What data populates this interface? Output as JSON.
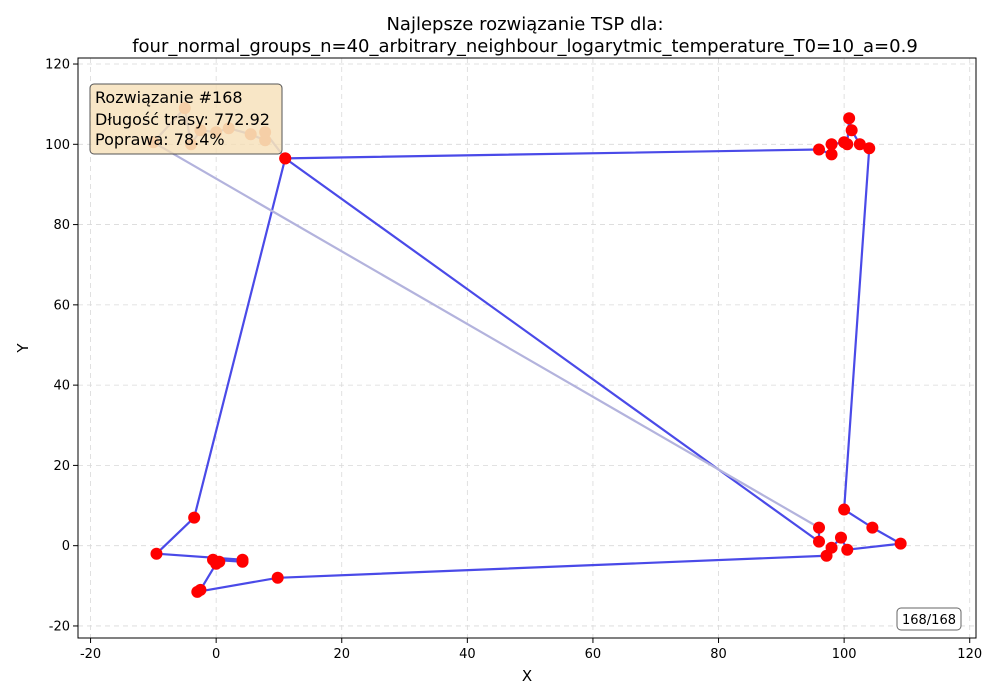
{
  "chart_data": {
    "type": "line",
    "title_line1": "Najlepsze rozwiązanie TSP dla:",
    "title_line2": "four_normal_groups_n=40_arbitrary_neighbour_logarytmic_temperature_T0=10_a=0.9",
    "xlabel": "X",
    "ylabel": "Y",
    "xlim": [
      -22,
      121
    ],
    "ylim": [
      -23,
      121.5
    ],
    "xticks": [
      -20,
      0,
      20,
      40,
      60,
      80,
      100,
      120
    ],
    "yticks": [
      -20,
      0,
      20,
      40,
      60,
      80,
      100,
      120
    ],
    "grid": true,
    "colors": {
      "route": "#4a4ae8",
      "highlight_route": "#b3b3dd",
      "city": "#ff0000",
      "highlight_city": "#f4a582",
      "info_box_bg": "#f5deb3",
      "grid": "#d9d9d9"
    },
    "route": [
      [
        -4.0,
        100.0
      ],
      [
        -2.5,
        103.5
      ],
      [
        0.0,
        103.0
      ],
      [
        2.0,
        104.0
      ],
      [
        5.5,
        102.5
      ],
      [
        7.8,
        101.0
      ],
      [
        7.8,
        103.0
      ],
      [
        11.0,
        96.5
      ],
      [
        96.0,
        98.7
      ],
      [
        98.0,
        97.5
      ],
      [
        98.0,
        100.0
      ],
      [
        100.0,
        100.5
      ],
      [
        100.5,
        100.0
      ],
      [
        100.8,
        106.5
      ],
      [
        101.2,
        103.5
      ],
      [
        102.5,
        100.0
      ],
      [
        104.0,
        99.0
      ],
      [
        100.0,
        9.0
      ],
      [
        104.5,
        4.5
      ],
      [
        109.0,
        0.5
      ],
      [
        100.5,
        -1.0
      ],
      [
        99.5,
        2.0
      ],
      [
        98.0,
        -0.5
      ],
      [
        97.2,
        -2.5
      ],
      [
        9.8,
        -8.0
      ],
      [
        -3.0,
        -11.5
      ],
      [
        -2.5,
        -11.0
      ],
      [
        0.0,
        -4.5
      ],
      [
        0.5,
        -4.0
      ],
      [
        -0.5,
        -3.5
      ],
      [
        4.2,
        -4.0
      ],
      [
        4.2,
        -3.5
      ],
      [
        -9.5,
        -2.0
      ],
      [
        -3.5,
        7.0
      ],
      [
        11.0,
        96.5
      ],
      [
        96.0,
        1.0
      ],
      [
        96.0,
        4.5
      ],
      [
        -10.0,
        100.5
      ],
      [
        -5.0,
        109.0
      ],
      [
        -4.0,
        100.0
      ]
    ],
    "highlighted_segment_start": 0,
    "highlighted_segment_end": 7,
    "highlighted_tail_start": 36,
    "info_box": {
      "line1": "Rozwiązanie #168",
      "line2": "Długość trasy: 772.92",
      "line3": "Poprawa: 78.4%"
    },
    "counter": "168/168"
  }
}
